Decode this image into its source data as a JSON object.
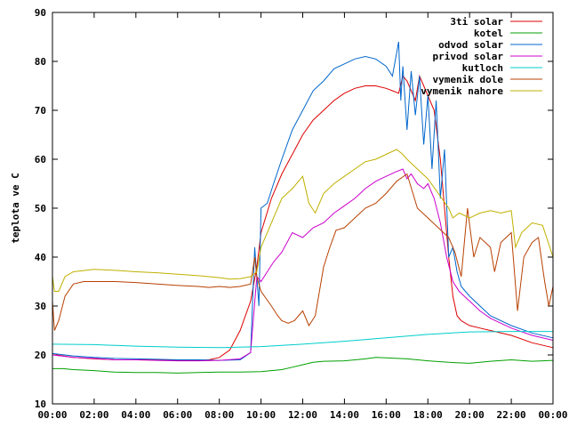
{
  "chart_data": {
    "type": "line",
    "title": "",
    "xlabel": "",
    "ylabel": "teplota ve C",
    "xlim": [
      0,
      24
    ],
    "ylim": [
      10,
      90
    ],
    "x_ticks": [
      "00:00",
      "02:00",
      "04:00",
      "06:00",
      "08:00",
      "10:00",
      "12:00",
      "14:00",
      "16:00",
      "18:00",
      "20:00",
      "22:00",
      "00:00"
    ],
    "y_ticks": [
      10,
      20,
      30,
      40,
      50,
      60,
      70,
      80,
      90
    ],
    "legend_position": "top-right",
    "series": [
      {
        "name": "3ti solar",
        "color": "#dd0000",
        "x": [
          0,
          0.2,
          1,
          2,
          3,
          4,
          5,
          6,
          7,
          7.5,
          8,
          8.5,
          9,
          9.5,
          9.8,
          10,
          10.5,
          11,
          11.5,
          12,
          12.5,
          13,
          13.5,
          14,
          14.5,
          15,
          15.5,
          16,
          16.3,
          16.6,
          16.8,
          17,
          17.2,
          17.4,
          17.6,
          17.8,
          18,
          18.3,
          18.6,
          18.8,
          19,
          19.2,
          19.4,
          19.6,
          19.8,
          20,
          20.5,
          21,
          22,
          23,
          24
        ],
        "y": [
          20,
          20,
          19.5,
          19.2,
          19,
          19,
          19,
          18.9,
          18.9,
          19,
          19.5,
          21,
          25,
          31,
          38,
          45,
          52,
          57,
          61,
          65,
          68,
          70,
          72,
          73.5,
          74.5,
          75,
          75,
          74.5,
          74,
          73.5,
          77,
          76,
          74,
          72,
          77,
          75,
          73,
          70,
          60,
          50,
          40,
          32,
          28,
          27,
          26.5,
          26,
          25.5,
          25,
          24,
          22.5,
          21.5
        ]
      },
      {
        "name": "kotel",
        "color": "#00a000",
        "x": [
          0,
          0.5,
          1,
          2,
          3,
          4,
          5,
          6,
          7,
          8,
          9,
          10,
          11,
          11.5,
          12,
          12.5,
          13,
          14,
          15,
          15.5,
          16,
          17,
          18,
          19,
          20,
          21,
          22,
          23,
          24
        ],
        "y": [
          17.2,
          17.2,
          17,
          16.8,
          16.5,
          16.4,
          16.4,
          16.3,
          16.4,
          16.5,
          16.5,
          16.6,
          17,
          17.5,
          18,
          18.5,
          18.7,
          18.8,
          19.2,
          19.5,
          19.4,
          19.2,
          18.8,
          18.5,
          18.3,
          18.7,
          19,
          18.7,
          18.9
        ]
      },
      {
        "name": "odvod solar",
        "color": "#0066cc",
        "x": [
          0,
          1,
          2,
          3,
          4,
          5,
          6,
          7,
          8,
          9,
          9.5,
          9.7,
          9.9,
          10,
          10.3,
          10.6,
          11,
          11.5,
          12,
          12.5,
          13,
          13.5,
          14,
          14.5,
          15,
          15.5,
          16,
          16.3,
          16.6,
          16.7,
          16.8,
          17,
          17.2,
          17.4,
          17.6,
          17.8,
          18,
          18.2,
          18.4,
          18.6,
          18.8,
          19,
          19.2,
          19.4,
          19.6,
          19.8,
          20,
          20.5,
          21,
          22,
          23,
          24
        ],
        "y": [
          20.3,
          19.8,
          19.5,
          19.3,
          19.2,
          19.1,
          19,
          19,
          18.9,
          19,
          20.5,
          42,
          30,
          50,
          51,
          55,
          60,
          66,
          70,
          74,
          76,
          78.5,
          79.5,
          80.5,
          81,
          80.5,
          79,
          77,
          84,
          72,
          79,
          66,
          78,
          69,
          77,
          63,
          73,
          58,
          72,
          52,
          62,
          40,
          42,
          37,
          34,
          33,
          32,
          30,
          28,
          26,
          24.5,
          23.5
        ]
      },
      {
        "name": "privod solar",
        "color": "#cc00cc",
        "x": [
          0,
          1,
          2,
          3,
          4,
          5,
          6,
          7,
          8,
          9,
          9.5,
          9.8,
          10,
          10.3,
          10.6,
          11,
          11.5,
          12,
          12.5,
          13,
          13.5,
          14,
          14.5,
          15,
          15.5,
          16,
          16.5,
          16.8,
          17,
          17.2,
          17.5,
          17.8,
          18,
          18.3,
          18.6,
          18.9,
          19.2,
          19.5,
          20,
          20.5,
          21,
          22,
          23,
          24
        ],
        "y": [
          20,
          19.5,
          19.3,
          19,
          19,
          18.9,
          18.8,
          18.8,
          18.9,
          19.2,
          20.5,
          36,
          35,
          37,
          39,
          41,
          45,
          44,
          46,
          47,
          49,
          50.5,
          52,
          54,
          55.5,
          56.5,
          57.5,
          58,
          56,
          57,
          55,
          54,
          55,
          52,
          47,
          40,
          35,
          33,
          31,
          29,
          27.5,
          25.5,
          24,
          23
        ]
      },
      {
        "name": "kutloch",
        "color": "#00cccc",
        "x": [
          0,
          2,
          4,
          6,
          8,
          10,
          12,
          14,
          16,
          18,
          20,
          22,
          24
        ],
        "y": [
          22.2,
          22.1,
          21.8,
          21.6,
          21.5,
          21.7,
          22.2,
          22.8,
          23.5,
          24.2,
          24.7,
          24.8,
          24.8
        ]
      },
      {
        "name": "vymenik dole",
        "color": "#b84000",
        "x": [
          0,
          0.1,
          0.3,
          0.6,
          1,
          1.5,
          2,
          3,
          4,
          5,
          6,
          7,
          7.5,
          8,
          8.5,
          9,
          9.5,
          9.7,
          9.8,
          10,
          10.5,
          10.8,
          11,
          11.3,
          11.6,
          12,
          12.3,
          12.6,
          13,
          13.3,
          13.6,
          14,
          14.5,
          15,
          15.5,
          16,
          16.5,
          17,
          17.5,
          18,
          18.5,
          19,
          19.3,
          19.6,
          19.9,
          20.2,
          20.5,
          21,
          21.2,
          21.5,
          22,
          22.3,
          22.6,
          23,
          23.3,
          23.6,
          23.8,
          24
        ],
        "y": [
          31,
          25,
          27,
          32,
          34.5,
          35,
          35,
          35,
          34.8,
          34.5,
          34.2,
          34,
          33.8,
          34,
          33.8,
          34,
          34.5,
          40,
          36,
          33,
          30,
          28,
          27,
          26.5,
          27,
          29,
          26,
          28,
          38,
          42,
          45.5,
          46,
          48,
          50,
          51,
          53,
          55.5,
          57,
          50,
          48,
          46,
          44,
          41,
          36,
          50,
          40,
          44,
          42,
          37,
          43,
          45,
          29,
          40,
          43,
          44,
          35,
          30,
          34
        ]
      },
      {
        "name": "vymenik nahore",
        "color": "#c0b000",
        "x": [
          0,
          0.1,
          0.3,
          0.6,
          1,
          2,
          3,
          4,
          5,
          6,
          7,
          8,
          8.5,
          9,
          9.5,
          9.8,
          10,
          10.5,
          11,
          11.5,
          12,
          12.3,
          12.6,
          13,
          13.5,
          14,
          14.5,
          15,
          15.5,
          16,
          16.5,
          16.8,
          17,
          17.5,
          18,
          18.5,
          19,
          19.2,
          19.5,
          20,
          20.5,
          21,
          21.5,
          22,
          22.2,
          22.5,
          23,
          23.5,
          24
        ],
        "y": [
          36,
          33,
          33,
          36,
          37,
          37.5,
          37.3,
          37,
          36.8,
          36.5,
          36.2,
          35.8,
          35.5,
          35.6,
          36,
          37,
          42,
          47,
          52,
          54,
          56.5,
          51,
          49,
          53,
          55,
          56.5,
          58,
          59.5,
          60,
          61,
          62,
          61,
          60,
          58,
          56,
          53,
          50,
          48,
          49,
          48,
          49,
          49.5,
          49,
          49.5,
          42,
          45,
          47,
          46.5,
          40
        ]
      }
    ]
  }
}
